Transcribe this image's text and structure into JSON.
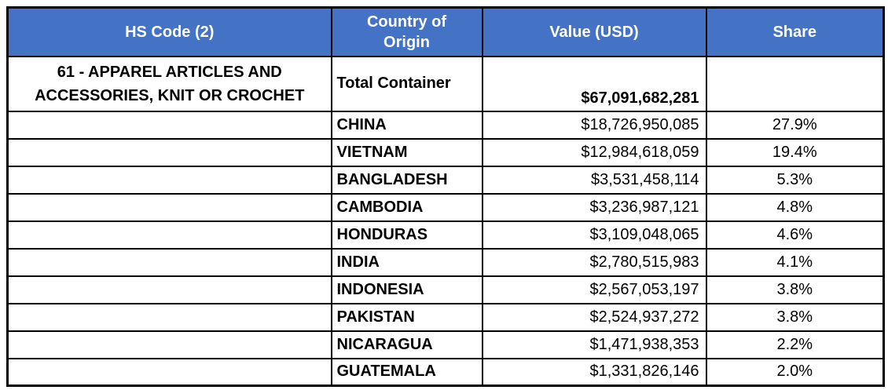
{
  "chart_data": {
    "type": "table",
    "columns": [
      "HS Code (2)",
      "Country of Origin",
      "Value (USD)",
      "Share"
    ],
    "total_row": {
      "hs_code": "61 - APPAREL ARTICLES AND ACCESSORIES, KNIT OR CROCHET",
      "country": "Total Container",
      "value_usd": "$67,091,682,281",
      "share": ""
    },
    "country_rows": [
      {
        "country": "CHINA",
        "value_usd": "$18,726,950,085",
        "share": "27.9%"
      },
      {
        "country": "VIETNAM",
        "value_usd": "$12,984,618,059",
        "share": "19.4%"
      },
      {
        "country": "BANGLADESH",
        "value_usd": "$3,531,458,114",
        "share": "5.3%"
      },
      {
        "country": "CAMBODIA",
        "value_usd": "$3,236,987,121",
        "share": "4.8%"
      },
      {
        "country": "HONDURAS",
        "value_usd": "$3,109,048,065",
        "share": "4.6%"
      },
      {
        "country": "INDIA",
        "value_usd": "$2,780,515,983",
        "share": "4.1%"
      },
      {
        "country": "INDONESIA",
        "value_usd": "$2,567,053,197",
        "share": "3.8%"
      },
      {
        "country": "PAKISTAN",
        "value_usd": "$2,524,937,272",
        "share": "3.8%"
      },
      {
        "country": "NICARAGUA",
        "value_usd": "$1,471,938,353",
        "share": "2.2%"
      },
      {
        "country": "GUATEMALA",
        "value_usd": "$1,331,826,146",
        "share": "2.0%"
      }
    ],
    "colors": {
      "header_bg": "#4472C4",
      "header_text": "#FFFFFF",
      "border": "#000000",
      "body_text": "#000000"
    }
  }
}
